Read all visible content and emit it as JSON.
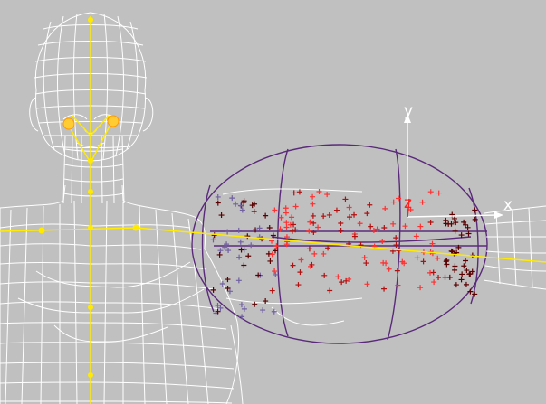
{
  "viewport": {
    "background": "#c0c0c0",
    "mesh_color": "#ffffff",
    "skeleton_color": "#ffea00",
    "envelope_color": "#5a2a7a",
    "vertex_weight_colors": [
      "#ff3030",
      "#b01010",
      "#5a0000",
      "#7060a0"
    ]
  },
  "gizmo": {
    "x_label": "x",
    "y_label": "y",
    "z_label": "z",
    "axis_color": "#ffffff",
    "z_color": "#ff2020"
  },
  "icons": [
    "move-gizmo-icon",
    "bone-joint-icon"
  ]
}
